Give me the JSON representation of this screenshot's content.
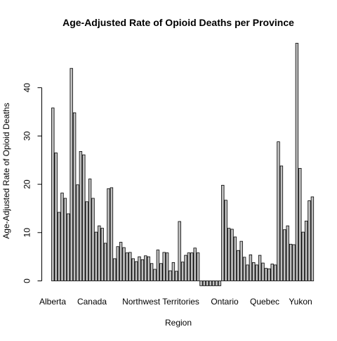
{
  "chart_data": {
    "type": "bar",
    "title": "Age-Adjusted Rate of Opioid Deaths per Province",
    "xlabel": "Region",
    "ylabel": "Age-Adjusted Rate of Opioid Deaths",
    "ylim": [
      -1.2,
      50
    ],
    "yticks": [
      0,
      10,
      20,
      30,
      40
    ],
    "grid": false,
    "legend": "none",
    "category_labels": [
      "Alberta",
      "Canada",
      "Northwest Territories",
      "Ontario",
      "Quebec",
      "Yukon"
    ],
    "values": [
      35.8,
      26.5,
      14.2,
      18.2,
      17.1,
      13.9,
      44.0,
      34.8,
      19.9,
      26.8,
      26.1,
      16.4,
      21.1,
      17.1,
      10.1,
      11.4,
      10.9,
      7.8,
      19.1,
      19.3,
      4.6,
      7.1,
      8.0,
      6.9,
      5.8,
      5.9,
      4.6,
      4.0,
      5.0,
      4.4,
      5.2,
      5.0,
      3.6,
      2.4,
      6.4,
      3.6,
      5.9,
      5.8,
      2.1,
      3.8,
      2.0,
      12.3,
      3.9,
      5.3,
      5.8,
      5.8,
      6.8,
      5.8,
      -1.0,
      -1.0,
      -1.0,
      -1.0,
      -1.0,
      -1.0,
      -1.0,
      19.8,
      16.7,
      10.9,
      10.7,
      9.1,
      6.3,
      8.2,
      4.9,
      3.3,
      5.4,
      3.8,
      3.3,
      5.3,
      3.7,
      2.6,
      2.5,
      3.5,
      3.3,
      28.8,
      23.8,
      10.6,
      11.4,
      7.6,
      7.5,
      49.2,
      23.3,
      10.1,
      12.4,
      16.6,
      17.4
    ],
    "colors": {
      "bar_fill": "#c0c0c0",
      "bar_stroke": "#000000",
      "background": "#ffffff"
    }
  }
}
